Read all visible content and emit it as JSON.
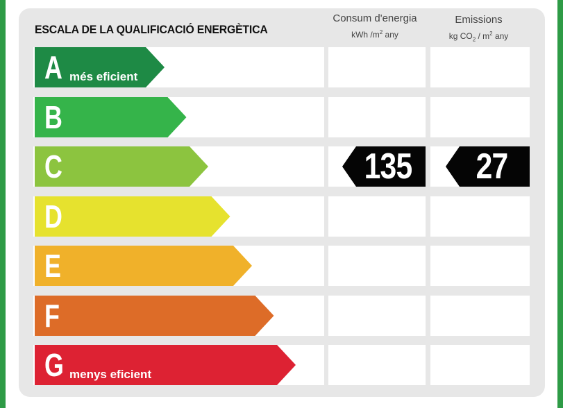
{
  "title": "ESCALA DE LA QUALIFICACIÓ ENERGÈTICA",
  "columns": {
    "energy": {
      "heading": "Consum d'energia",
      "unit_main": "kWh /m",
      "unit_sup": "2",
      "unit_tail": " any"
    },
    "emissions": {
      "heading": "Emissions",
      "unit_pre": "kg CO",
      "unit_sub": "2",
      "unit_mid": "  / m",
      "unit_sup": "2",
      "unit_tail": "  any"
    }
  },
  "chart_data": {
    "type": "bar",
    "categories": [
      "A",
      "B",
      "C",
      "D",
      "E",
      "F",
      "G"
    ],
    "labels": {
      "A": "més eficient",
      "G": "menys eficient"
    },
    "colors": [
      "#1e8a45",
      "#35b44a",
      "#8cc43f",
      "#e6e22e",
      "#f0b12a",
      "#dd6c28",
      "#dd2233"
    ],
    "rating": "C",
    "energy_consumption": 135,
    "emissions": 27
  },
  "values": {
    "energy": "135",
    "emissions": "27"
  }
}
